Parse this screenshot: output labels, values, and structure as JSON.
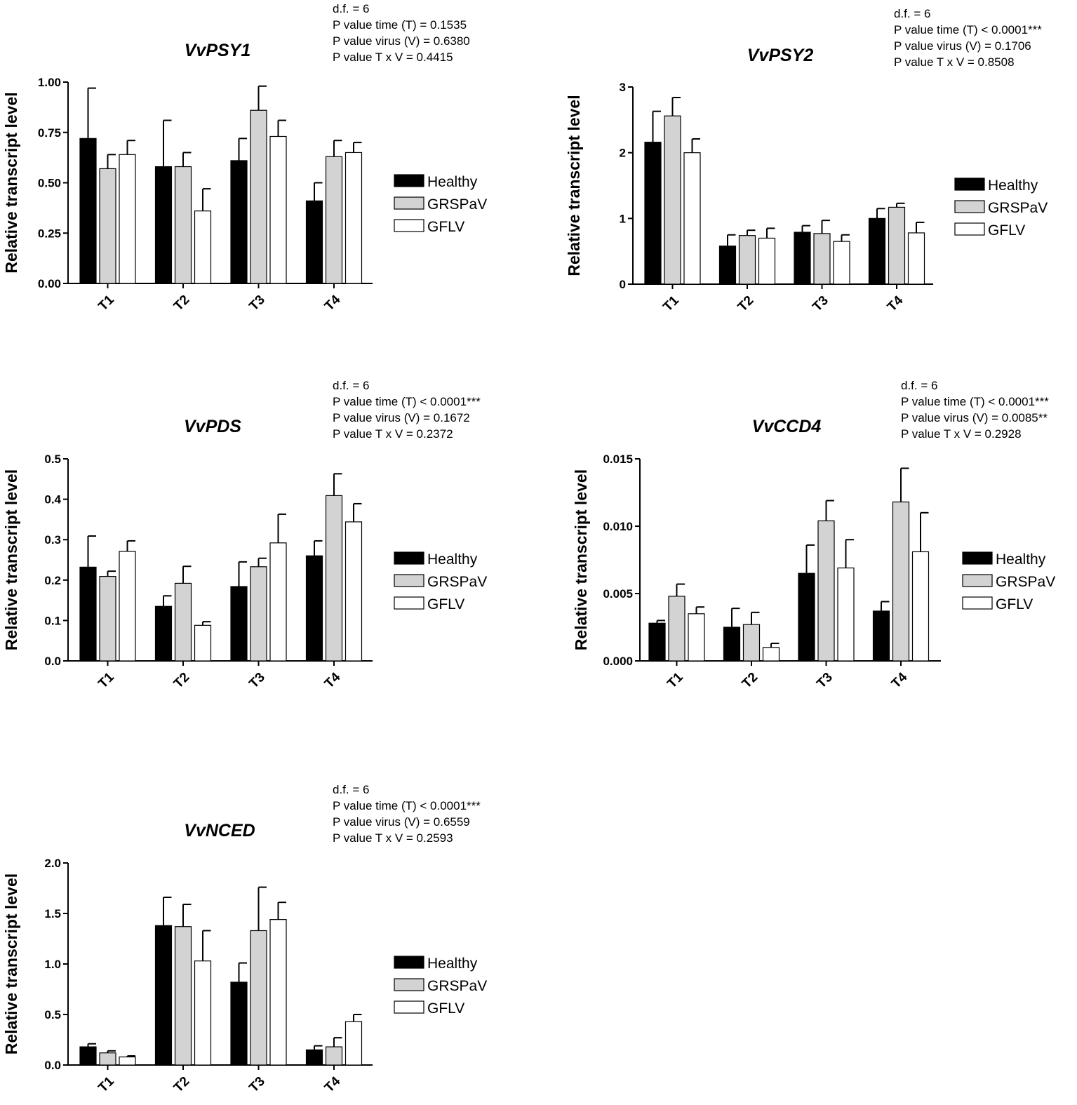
{
  "legend": [
    "Healthy",
    "GRSPaV",
    "GFLV"
  ],
  "y_axis_label": "Relative transcript level",
  "series_colors": {
    "Healthy": "#000000",
    "GRSPaV": "#d3d3d3",
    "GFLV": "#ffffff"
  },
  "chart_data": [
    {
      "type": "bar",
      "title": "VvPSY1",
      "stats": [
        "d.f. = 6",
        "P value time (T) = 0.1535",
        "P value virus (V) = 0.6380",
        "P value T x V = 0.4415"
      ],
      "categories": [
        "T1",
        "T2",
        "T3",
        "T4"
      ],
      "ylabel": "Relative transcript level",
      "ylim": [
        0,
        1.0
      ],
      "yticks": [
        "0.00",
        "0.25",
        "0.50",
        "0.75",
        "1.00"
      ],
      "series": [
        {
          "name": "Healthy",
          "values": [
            0.72,
            0.58,
            0.61,
            0.41
          ],
          "errors": [
            0.25,
            0.23,
            0.11,
            0.09
          ]
        },
        {
          "name": "GRSPaV",
          "values": [
            0.57,
            0.58,
            0.86,
            0.63
          ],
          "errors": [
            0.07,
            0.07,
            0.12,
            0.08
          ]
        },
        {
          "name": "GFLV",
          "values": [
            0.64,
            0.36,
            0.73,
            0.65
          ],
          "errors": [
            0.07,
            0.11,
            0.08,
            0.05
          ]
        }
      ]
    },
    {
      "type": "bar",
      "title": "VvPSY2",
      "stats": [
        "d.f. = 6",
        "P value time (T) < 0.0001***",
        "P value virus (V) = 0.1706",
        "P value T x V = 0.8508"
      ],
      "categories": [
        "T1",
        "T2",
        "T3",
        "T4"
      ],
      "ylabel": "Relative transcript level",
      "ylim": [
        0,
        3
      ],
      "yticks": [
        "0",
        "1",
        "2",
        "3"
      ],
      "series": [
        {
          "name": "Healthy",
          "values": [
            2.16,
            0.58,
            0.79,
            1.0
          ],
          "errors": [
            0.47,
            0.17,
            0.1,
            0.15
          ]
        },
        {
          "name": "GRSPaV",
          "values": [
            2.56,
            0.74,
            0.77,
            1.17
          ],
          "errors": [
            0.28,
            0.08,
            0.2,
            0.06
          ]
        },
        {
          "name": "GFLV",
          "values": [
            2.0,
            0.7,
            0.65,
            0.78
          ],
          "errors": [
            0.21,
            0.15,
            0.1,
            0.16
          ]
        }
      ]
    },
    {
      "type": "bar",
      "title": "VvPDS",
      "stats": [
        "d.f. = 6",
        "P value time (T) < 0.0001***",
        "P value virus (V) = 0.1672",
        "P value T x V = 0.2372"
      ],
      "categories": [
        "T1",
        "T2",
        "T3",
        "T4"
      ],
      "ylabel": "Relative transcript level",
      "ylim": [
        0,
        0.5
      ],
      "yticks": [
        "0.0",
        "0.1",
        "0.2",
        "0.3",
        "0.4",
        "0.5"
      ],
      "series": [
        {
          "name": "Healthy",
          "values": [
            0.232,
            0.135,
            0.184,
            0.26
          ],
          "errors": [
            0.077,
            0.026,
            0.061,
            0.037
          ]
        },
        {
          "name": "GRSPaV",
          "values": [
            0.209,
            0.192,
            0.233,
            0.409
          ],
          "errors": [
            0.013,
            0.042,
            0.021,
            0.054
          ]
        },
        {
          "name": "GFLV",
          "values": [
            0.271,
            0.088,
            0.292,
            0.344
          ],
          "errors": [
            0.026,
            0.009,
            0.071,
            0.045
          ]
        }
      ]
    },
    {
      "type": "bar",
      "title": "VvCCD4",
      "stats": [
        "d.f. = 6",
        "P value time (T) < 0.0001***",
        "P value virus (V) = 0.0085**",
        "P value T x V = 0.2928"
      ],
      "categories": [
        "T1",
        "T2",
        "T3",
        "T4"
      ],
      "ylabel": "Relative transcript level",
      "ylim": [
        0,
        0.015
      ],
      "yticks": [
        "0.000",
        "0.005",
        "0.010",
        "0.015"
      ],
      "series": [
        {
          "name": "Healthy",
          "values": [
            0.0028,
            0.0025,
            0.0065,
            0.0037
          ],
          "errors": [
            0.0002,
            0.0014,
            0.0021,
            0.0007
          ]
        },
        {
          "name": "GRSPaV",
          "values": [
            0.0048,
            0.0027,
            0.0104,
            0.0118
          ],
          "errors": [
            0.0009,
            0.0009,
            0.0015,
            0.0025
          ]
        },
        {
          "name": "GFLV",
          "values": [
            0.0035,
            0.001,
            0.0069,
            0.0081
          ],
          "errors": [
            0.0005,
            0.0003,
            0.0021,
            0.0029
          ]
        }
      ]
    },
    {
      "type": "bar",
      "title": "VvNCED",
      "stats": [
        "d.f. = 6",
        "P value time (T) < 0.0001***",
        "P value virus (V) = 0.6559",
        "P value T x V = 0.2593"
      ],
      "categories": [
        "T1",
        "T2",
        "T3",
        "T4"
      ],
      "ylabel": "Relative transcript level",
      "ylim": [
        0,
        2.0
      ],
      "yticks": [
        "0.0",
        "0.5",
        "1.0",
        "1.5",
        "2.0"
      ],
      "series": [
        {
          "name": "Healthy",
          "values": [
            0.18,
            1.38,
            0.82,
            0.15
          ],
          "errors": [
            0.03,
            0.28,
            0.19,
            0.04
          ]
        },
        {
          "name": "GRSPaV",
          "values": [
            0.12,
            1.37,
            1.33,
            0.18
          ],
          "errors": [
            0.02,
            0.22,
            0.43,
            0.09
          ]
        },
        {
          "name": "GFLV",
          "values": [
            0.08,
            1.03,
            1.44,
            0.43
          ],
          "errors": [
            0.01,
            0.3,
            0.17,
            0.07
          ]
        }
      ]
    }
  ]
}
